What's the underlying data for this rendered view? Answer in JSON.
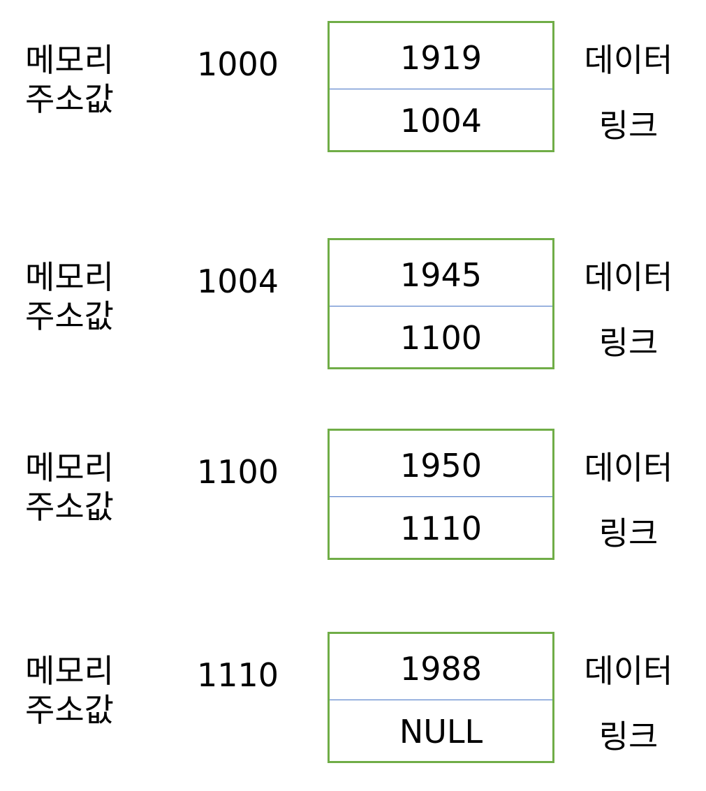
{
  "nodes": [
    {
      "addr_label_line1": "메모리",
      "addr_label_line2": "주소값",
      "address": "1000",
      "data": "1919",
      "link": "1004",
      "data_label": "데이터",
      "link_label": "링크"
    },
    {
      "addr_label_line1": "메모리",
      "addr_label_line2": "주소값",
      "address": "1004",
      "data": "1945",
      "link": "1100",
      "data_label": "데이터",
      "link_label": "링크"
    },
    {
      "addr_label_line1": "메모리",
      "addr_label_line2": "주소값",
      "address": "1100",
      "data": "1950",
      "link": "1110",
      "data_label": "데이터",
      "link_label": "링크"
    },
    {
      "addr_label_line1": "메모리",
      "addr_label_line2": "주소값",
      "address": "1110",
      "data": "1988",
      "link": "NULL",
      "data_label": "데이터",
      "link_label": "링크"
    }
  ],
  "colors": {
    "box_border": "#70ad47",
    "divider": "#4472c4",
    "text": "#000000"
  }
}
